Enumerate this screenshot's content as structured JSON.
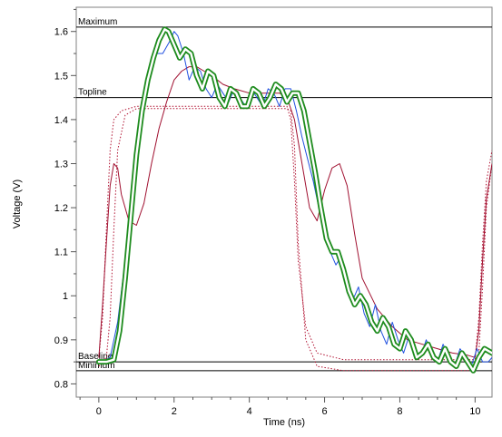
{
  "chart_data": {
    "type": "line",
    "xlabel": "Time (ns)",
    "ylabel": "Voltage (V)",
    "xlim": [
      -0.6,
      10.45
    ],
    "ylim": [
      0.77,
      1.655
    ],
    "x_ticks": [
      0,
      2,
      4,
      6,
      8,
      10
    ],
    "x_minor_step": 0.5,
    "y_ticks": [
      0.8,
      0.9,
      1.0,
      1.1,
      1.2,
      1.3,
      1.4,
      1.5,
      1.6
    ],
    "y_tick_labels": [
      "0.8",
      "0.9",
      "1",
      "1.1",
      "1.2",
      "1.3",
      "1.4",
      "1.5",
      "1.6"
    ],
    "y_minor_step": 0.05,
    "grid": false,
    "reference_lines": [
      {
        "label": "Maximum",
        "y": 1.61
      },
      {
        "label": "Topline",
        "y": 1.45
      },
      {
        "label": "Baseline",
        "y": 0.85
      },
      {
        "label": "Minimum",
        "y": 0.83
      }
    ],
    "series": [
      {
        "color": "#b01030",
        "style": "dotted",
        "x": [
          0,
          0.1,
          0.2,
          0.3,
          0.4,
          0.6,
          1.0,
          2.0,
          4.0,
          5.0,
          5.1,
          5.2,
          5.3,
          5.5,
          5.8,
          6.5,
          8.0,
          10.0,
          10.1,
          10.2,
          10.3,
          10.45
        ],
        "y": [
          0.86,
          0.95,
          1.15,
          1.33,
          1.4,
          1.42,
          1.43,
          1.43,
          1.43,
          1.43,
          1.4,
          1.26,
          1.08,
          0.93,
          0.87,
          0.855,
          0.855,
          0.855,
          0.95,
          1.12,
          1.26,
          1.33
        ]
      },
      {
        "color": "#b01030",
        "style": "dotted",
        "x": [
          0,
          0.2,
          0.3,
          0.4,
          0.5,
          0.7,
          1.0,
          2.0,
          4.0,
          5.0,
          5.1,
          5.2,
          5.3,
          5.5,
          5.8,
          6.5,
          8.0,
          10.0,
          10.1,
          10.2,
          10.3,
          10.45
        ],
        "y": [
          0.84,
          0.86,
          0.95,
          1.15,
          1.33,
          1.41,
          1.425,
          1.425,
          1.425,
          1.425,
          1.42,
          1.34,
          1.12,
          0.9,
          0.84,
          0.83,
          0.83,
          0.83,
          0.87,
          1.02,
          1.2,
          1.3
        ]
      },
      {
        "color": "#a01030",
        "style": "solid",
        "x": [
          0,
          0.1,
          0.2,
          0.3,
          0.4,
          0.5,
          0.6,
          0.8,
          1.0,
          1.2,
          1.4,
          1.6,
          1.8,
          2.0,
          2.2,
          2.4,
          2.6,
          2.8,
          3.0,
          3.3,
          3.6,
          4.0,
          4.4,
          4.8,
          5.0,
          5.2,
          5.4,
          5.6,
          5.8,
          6.0,
          6.2,
          6.4,
          6.6,
          6.8,
          7.0,
          7.4,
          7.8,
          8.2,
          8.6,
          9.0,
          9.4,
          9.8,
          10.0,
          10.1,
          10.2,
          10.3,
          10.45
        ],
        "y": [
          0.86,
          0.98,
          1.12,
          1.25,
          1.3,
          1.29,
          1.23,
          1.17,
          1.16,
          1.21,
          1.3,
          1.38,
          1.44,
          1.49,
          1.51,
          1.52,
          1.52,
          1.51,
          1.5,
          1.48,
          1.47,
          1.46,
          1.46,
          1.46,
          1.45,
          1.4,
          1.3,
          1.2,
          1.17,
          1.24,
          1.29,
          1.3,
          1.25,
          1.14,
          1.04,
          0.97,
          0.93,
          0.9,
          0.89,
          0.88,
          0.87,
          0.865,
          0.86,
          0.92,
          1.08,
          1.22,
          1.3
        ]
      },
      {
        "color": "#2050e0",
        "style": "solid",
        "x": [
          0,
          0.3,
          0.5,
          0.7,
          0.9,
          1.1,
          1.3,
          1.5,
          1.7,
          1.9,
          2.0,
          2.1,
          2.25,
          2.4,
          2.55,
          2.7,
          2.85,
          3.0,
          3.15,
          3.3,
          3.45,
          3.6,
          3.75,
          3.9,
          4.05,
          4.2,
          4.35,
          4.5,
          4.65,
          4.8,
          4.95,
          5.1,
          5.25,
          5.4,
          5.55,
          5.7,
          5.85,
          6.0,
          6.15,
          6.3,
          6.45,
          6.6,
          6.75,
          6.9,
          7.05,
          7.2,
          7.35,
          7.5,
          7.65,
          7.8,
          7.95,
          8.1,
          8.25,
          8.4,
          8.55,
          8.7,
          8.85,
          9.0,
          9.15,
          9.3,
          9.45,
          9.6,
          9.75,
          9.9,
          10.05,
          10.2,
          10.35,
          10.45
        ],
        "y": [
          0.845,
          0.86,
          0.94,
          1.08,
          1.25,
          1.4,
          1.5,
          1.55,
          1.55,
          1.58,
          1.6,
          1.59,
          1.55,
          1.49,
          1.52,
          1.51,
          1.47,
          1.45,
          1.48,
          1.46,
          1.44,
          1.47,
          1.45,
          1.43,
          1.47,
          1.45,
          1.43,
          1.47,
          1.46,
          1.43,
          1.47,
          1.47,
          1.42,
          1.36,
          1.31,
          1.26,
          1.2,
          1.15,
          1.1,
          1.07,
          1.09,
          1.03,
          0.99,
          1.02,
          0.96,
          0.93,
          0.98,
          0.92,
          0.89,
          0.94,
          0.9,
          0.87,
          0.91,
          0.88,
          0.86,
          0.9,
          0.87,
          0.85,
          0.89,
          0.86,
          0.84,
          0.88,
          0.86,
          0.84,
          0.88,
          0.85,
          0.85,
          0.86
        ]
      },
      {
        "color": "#1e8c1e",
        "style": "double",
        "x": [
          0,
          0.2,
          0.4,
          0.55,
          0.7,
          0.85,
          1.0,
          1.15,
          1.3,
          1.45,
          1.6,
          1.75,
          1.85,
          2.0,
          2.15,
          2.3,
          2.45,
          2.6,
          2.75,
          2.9,
          3.05,
          3.2,
          3.35,
          3.5,
          3.65,
          3.8,
          3.95,
          4.1,
          4.25,
          4.4,
          4.55,
          4.7,
          4.85,
          5.0,
          5.15,
          5.3,
          5.45,
          5.6,
          5.75,
          5.9,
          6.05,
          6.2,
          6.35,
          6.5,
          6.65,
          6.8,
          6.95,
          7.1,
          7.25,
          7.4,
          7.55,
          7.7,
          7.85,
          8.0,
          8.15,
          8.3,
          8.45,
          8.6,
          8.75,
          8.9,
          9.05,
          9.2,
          9.35,
          9.5,
          9.65,
          9.8,
          9.95,
          10.1,
          10.25,
          10.45
        ],
        "y": [
          0.85,
          0.85,
          0.855,
          0.92,
          1.04,
          1.18,
          1.32,
          1.42,
          1.49,
          1.54,
          1.58,
          1.605,
          1.6,
          1.57,
          1.54,
          1.56,
          1.55,
          1.5,
          1.47,
          1.51,
          1.5,
          1.45,
          1.43,
          1.47,
          1.46,
          1.43,
          1.43,
          1.47,
          1.46,
          1.43,
          1.45,
          1.48,
          1.47,
          1.44,
          1.46,
          1.46,
          1.42,
          1.35,
          1.28,
          1.2,
          1.13,
          1.1,
          1.1,
          1.06,
          1.01,
          0.98,
          1.0,
          0.98,
          0.94,
          0.92,
          0.95,
          0.93,
          0.89,
          0.88,
          0.92,
          0.9,
          0.86,
          0.87,
          0.89,
          0.86,
          0.85,
          0.88,
          0.85,
          0.84,
          0.87,
          0.85,
          0.83,
          0.86,
          0.88,
          0.87
        ]
      }
    ]
  }
}
